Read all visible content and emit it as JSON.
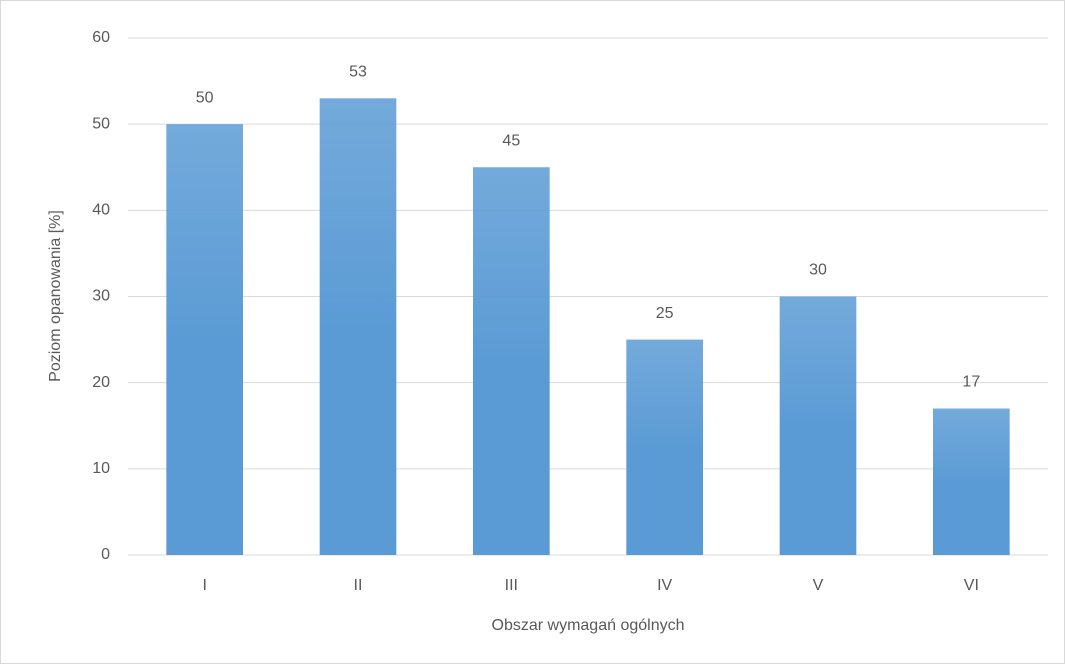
{
  "chart_data": {
    "type": "bar",
    "categories": [
      "I",
      "II",
      "III",
      "IV",
      "V",
      "VI"
    ],
    "values": [
      50,
      53,
      45,
      25,
      30,
      17
    ],
    "color": "#5b9bd5",
    "xlabel": "Obszar wymagań ogólnych",
    "ylabel": "Poziom opanowania [%]",
    "ylim": [
      0,
      60
    ],
    "yticks": [
      0,
      10,
      20,
      30,
      40,
      50,
      60
    ],
    "grid": true
  }
}
